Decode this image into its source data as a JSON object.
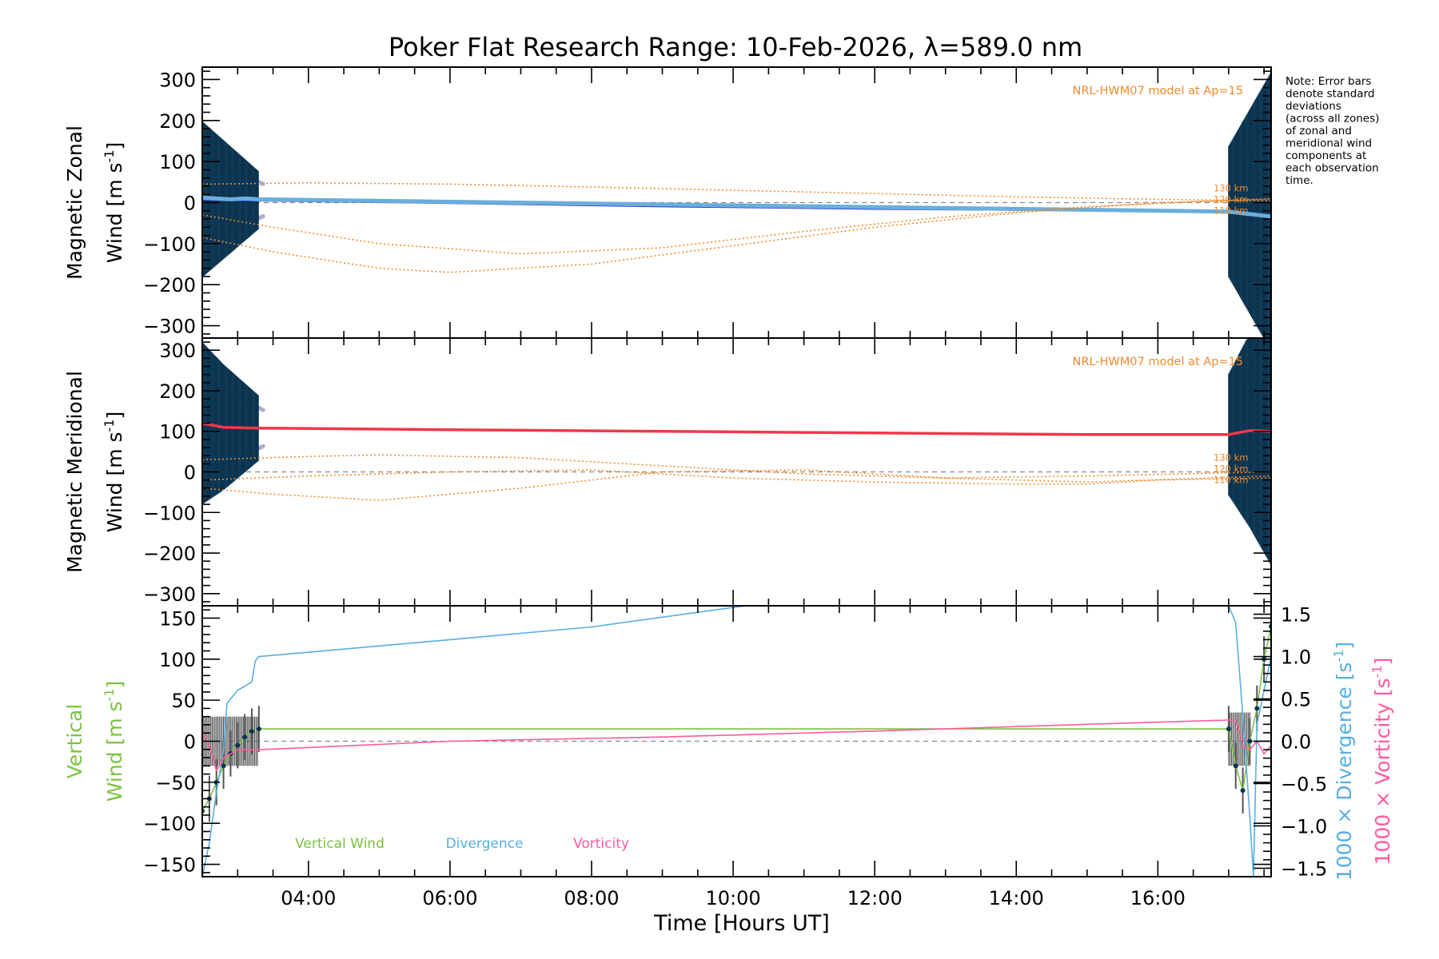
{
  "chart_data": {
    "type": "line",
    "title": "Poker Flat Research Range: 10-Feb-2026, λ=589.0 nm",
    "xlabel": "Time [Hours UT]",
    "x_ticks": [
      "04:00",
      "06:00",
      "08:00",
      "10:00",
      "12:00",
      "14:00",
      "16:00"
    ],
    "x_tick_hours": [
      4,
      6,
      8,
      10,
      12,
      14,
      16
    ],
    "xlim_hours": [
      2.5,
      17.6
    ],
    "note": [
      "Note: Error bars",
      "denote standard",
      "deviations",
      "(across all zones)",
      "of zonal and",
      "meridional wind",
      "components at",
      "each observation",
      "time."
    ],
    "panels": [
      {
        "id": "zonal",
        "ylabel_line1": "Magnetic Zonal",
        "ylabel_line2": "Wind [m s",
        "ylabel_sup": "-1",
        "ylabel_close": "]",
        "ylim": [
          -330,
          330
        ],
        "y_ticks": [
          300,
          200,
          100,
          0,
          -100,
          -200,
          -300
        ],
        "y_tick_labels": [
          "300",
          "200",
          "100",
          "0",
          "−100",
          "−200",
          "−300"
        ],
        "model_label": "NRL-HWM07 model at Ap=15",
        "altitude_labels": [
          "130 km",
          "120 km",
          "110 km"
        ],
        "colors": {
          "main": "#2b3de0",
          "light": "#6aaedc",
          "err": "#0b3450",
          "pts": "#b0aed6",
          "model": "#f08a2c"
        },
        "series": [
          {
            "name": "Zonal Wind",
            "x": [
              2.5,
              3.3,
              6,
              9,
              12,
              15,
              17.0
            ],
            "y": [
              8,
              6,
              0,
              -8,
              -14,
              -18,
              -22
            ]
          },
          {
            "name": "Zonal Wind (zone avg)",
            "x": [
              2.5,
              2.7,
              2.9,
              3.1,
              3.3,
              17.0,
              17.2,
              17.4,
              17.6
            ],
            "y": [
              12,
              10,
              8,
              10,
              8,
              -22,
              -26,
              -30,
              -34
            ]
          },
          {
            "name": "HWM07 130 km",
            "x": [
              2.5,
              4,
              6,
              8,
              10,
              12,
              14,
              16,
              17.6
            ],
            "y": [
              45,
              48,
              45,
              38,
              30,
              22,
              14,
              8,
              4
            ]
          },
          {
            "name": "HWM07 120 km",
            "x": [
              2.5,
              3.5,
              5,
              7,
              9,
              11,
              13,
              15,
              17.6
            ],
            "y": [
              -30,
              -60,
              -100,
              -125,
              -110,
              -70,
              -35,
              -10,
              10
            ]
          },
          {
            "name": "HWM07 110 km",
            "x": [
              2.5,
              3.5,
              5,
              6,
              8,
              10,
              12,
              14,
              16,
              17.6
            ],
            "y": [
              -85,
              -120,
              -160,
              -170,
              -150,
              -105,
              -60,
              -25,
              0,
              8
            ]
          }
        ]
      },
      {
        "id": "meridional",
        "ylabel_line1": "Magnetic Meridional",
        "ylabel_line2": "Wind [m s",
        "ylabel_sup": "-1",
        "ylabel_close": "]",
        "ylim": [
          -330,
          330
        ],
        "y_ticks": [
          300,
          200,
          100,
          0,
          -100,
          -200,
          -300
        ],
        "y_tick_labels": [
          "300",
          "200",
          "100",
          "0",
          "−100",
          "−200",
          "−300"
        ],
        "model_label": "NRL-HWM07 model at Ap=15",
        "altitude_labels": [
          "130 km",
          "120 km",
          "110 km"
        ],
        "colors": {
          "main": "#f0384a",
          "light": "#ff6aa0",
          "err": "#0b3450",
          "pts": "#b0aed6",
          "model": "#f08a2c"
        },
        "series": [
          {
            "name": "Meridional Wind",
            "x": [
              2.5,
              2.8,
              3.3,
              6,
              9,
              12,
              15,
              17.0,
              17.3,
              17.6
            ],
            "y": [
              120,
              110,
              108,
              104,
              100,
              96,
              92,
              92,
              102,
              100
            ]
          },
          {
            "name": "HWM07 130 km",
            "x": [
              2.5,
              4,
              5,
              7,
              9,
              11,
              13,
              15,
              17.6
            ],
            "y": [
              30,
              38,
              42,
              35,
              15,
              -5,
              -15,
              -10,
              0
            ]
          },
          {
            "name": "HWM07 120 km",
            "x": [
              2.5,
              3.5,
              5,
              7,
              9,
              11,
              13,
              15,
              17.6
            ],
            "y": [
              -40,
              -55,
              -70,
              -40,
              0,
              5,
              -15,
              -25,
              -10
            ]
          },
          {
            "name": "HWM07 110 km",
            "x": [
              2.5,
              4,
              6,
              8,
              10,
              12,
              14,
              15,
              16,
              17.6
            ],
            "y": [
              -20,
              -10,
              0,
              5,
              -15,
              -25,
              -30,
              -30,
              -20,
              -15
            ]
          }
        ]
      },
      {
        "id": "vertical",
        "ylabel_line1": "Vertical",
        "ylabel_line2": "Wind [m s",
        "ylabel_sup": "-1",
        "ylabel_close": "]",
        "ylim": [
          -165,
          165
        ],
        "y_ticks": [
          150,
          100,
          50,
          0,
          -50,
          -100,
          -150
        ],
        "y_tick_labels": [
          "150",
          "100",
          "50",
          "0",
          "−50",
          "−100",
          "−150"
        ],
        "right_ylim": [
          -1.6,
          1.6
        ],
        "right_y_ticks": [
          1.5,
          1.0,
          0.5,
          0.0,
          -0.5,
          -1.0,
          -1.5
        ],
        "right_y_tick_labels": [
          "1.5",
          "1.0",
          "0.5",
          "0.0",
          "−0.5",
          "−1.0",
          "−1.5"
        ],
        "right_label_div": "1000 × Divergence [s",
        "right_label_vort": "1000 × Vorticity [s",
        "right_label_sup": "-1",
        "right_label_close": "]",
        "legend": [
          "Vertical Wind",
          "Divergence",
          "Vorticity"
        ],
        "colors": {
          "vertical": "#7cc242",
          "divergence": "#5aaede",
          "vorticity": "#ff5aa0",
          "err": "#555555",
          "pts": "#0b3450"
        },
        "series": [
          {
            "name": "Vertical Wind",
            "axis": "left",
            "x": [
              2.5,
              2.6,
              2.7,
              2.8,
              2.9,
              3.0,
              3.1,
              3.2,
              3.3,
              17.0,
              17.1,
              17.2,
              17.3,
              17.4,
              17.5,
              17.6
            ],
            "y": [
              -85,
              -70,
              -50,
              -30,
              -15,
              -5,
              5,
              12,
              15,
              15,
              -30,
              -60,
              0,
              40,
              100,
              140
            ]
          },
          {
            "name": "Divergence",
            "axis": "right",
            "x": [
              2.5,
              2.6,
              2.7,
              2.8,
              2.85,
              3.0,
              3.2,
              3.25,
              3.3,
              6,
              8,
              10,
              10.2,
              17.0,
              17.1,
              17.2,
              17.3,
              17.35,
              17.4,
              17.6
            ],
            "y": [
              -1.6,
              -1.2,
              -0.6,
              -0.1,
              0.45,
              0.6,
              0.7,
              0.95,
              1.0,
              1.2,
              1.35,
              1.58,
              1.6,
              1.6,
              1.4,
              0.3,
              -0.9,
              -1.6,
              0.2,
              1.0
            ]
          },
          {
            "name": "Vorticity",
            "axis": "right",
            "x": [
              2.5,
              2.6,
              2.7,
              2.8,
              2.9,
              3.0,
              3.3,
              6,
              9,
              12,
              15,
              17.0,
              17.1,
              17.2,
              17.3,
              17.4,
              17.5,
              17.6
            ],
            "y": [
              0.1,
              -0.05,
              -0.35,
              -0.2,
              -0.15,
              -0.1,
              -0.1,
              0.0,
              0.05,
              0.12,
              0.2,
              0.25,
              0.25,
              -0.05,
              -0.1,
              0.0,
              -0.15,
              -0.05
            ]
          }
        ]
      }
    ]
  }
}
